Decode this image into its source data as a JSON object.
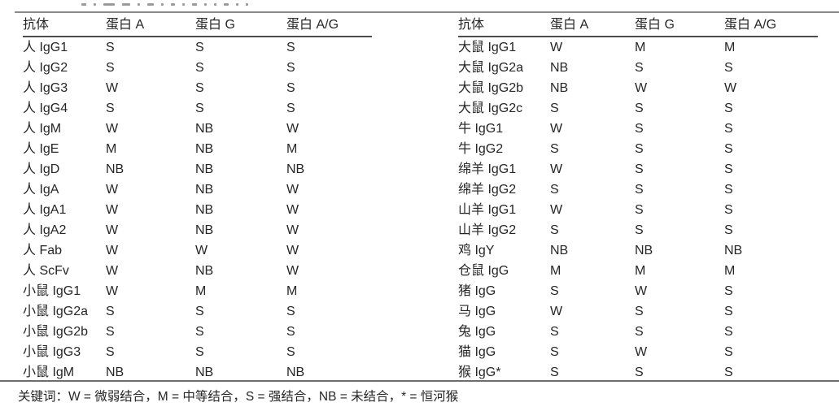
{
  "page": {
    "colors": {
      "background": "#ffffff",
      "text": "#262626",
      "rule": "#8a8a8a",
      "header_rule": "#4d4d4d"
    }
  },
  "legend": "关键词：W = 微弱结合，M = 中等结合，S = 强结合，NB = 未结合，* = 恒河猴",
  "tables": [
    {
      "headers": [
        "抗体",
        "蛋白 A",
        "蛋白 G",
        "蛋白 A/G"
      ],
      "rows": [
        [
          "人 IgG1",
          "S",
          "S",
          "S"
        ],
        [
          "人 IgG2",
          "S",
          "S",
          "S"
        ],
        [
          "人 IgG3",
          "W",
          "S",
          "S"
        ],
        [
          "人 IgG4",
          "S",
          "S",
          "S"
        ],
        [
          "人 IgM",
          "W",
          "NB",
          "W"
        ],
        [
          "人 IgE",
          "M",
          "NB",
          "M"
        ],
        [
          "人 IgD",
          "NB",
          "NB",
          "NB"
        ],
        [
          "人 IgA",
          "W",
          "NB",
          "W"
        ],
        [
          "人 IgA1",
          "W",
          "NB",
          "W"
        ],
        [
          "人 IgA2",
          "W",
          "NB",
          "W"
        ],
        [
          "人 Fab",
          "W",
          "W",
          "W"
        ],
        [
          "人 ScFv",
          "W",
          "NB",
          "W"
        ],
        [
          "小鼠 IgG1",
          "W",
          "M",
          "M"
        ],
        [
          "小鼠 IgG2a",
          "S",
          "S",
          "S"
        ],
        [
          "小鼠 IgG2b",
          "S",
          "S",
          "S"
        ],
        [
          "小鼠 IgG3",
          "S",
          "S",
          "S"
        ],
        [
          "小鼠 IgM",
          "NB",
          "NB",
          "NB"
        ]
      ]
    },
    {
      "headers": [
        "抗体",
        "蛋白 A",
        "蛋白 G",
        "蛋白 A/G"
      ],
      "rows": [
        [
          "大鼠 IgG1",
          "W",
          "M",
          "M"
        ],
        [
          "大鼠 IgG2a",
          "NB",
          "S",
          "S"
        ],
        [
          "大鼠 IgG2b",
          "NB",
          "W",
          "W"
        ],
        [
          "大鼠 IgG2c",
          "S",
          "S",
          "S"
        ],
        [
          "牛 IgG1",
          "W",
          "S",
          "S"
        ],
        [
          "牛 IgG2",
          "S",
          "S",
          "S"
        ],
        [
          "绵羊 IgG1",
          "W",
          "S",
          "S"
        ],
        [
          "绵羊 IgG2",
          "S",
          "S",
          "S"
        ],
        [
          "山羊 IgG1",
          "W",
          "S",
          "S"
        ],
        [
          "山羊 IgG2",
          "S",
          "S",
          "S"
        ],
        [
          "鸡 IgY",
          "NB",
          "NB",
          "NB"
        ],
        [
          "仓鼠 IgG",
          "M",
          "M",
          "M"
        ],
        [
          "猪 IgG",
          "S",
          "W",
          "S"
        ],
        [
          "马 IgG",
          "W",
          "S",
          "S"
        ],
        [
          "兔 IgG",
          "S",
          "S",
          "S"
        ],
        [
          "猫 IgG",
          "S",
          "W",
          "S"
        ],
        [
          "猴 IgG*",
          "S",
          "S",
          "S"
        ]
      ]
    }
  ]
}
